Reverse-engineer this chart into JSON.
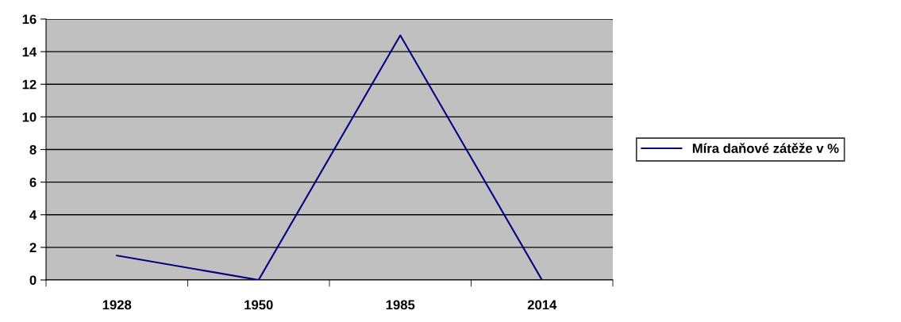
{
  "chart_data": {
    "type": "line",
    "categories": [
      "1928",
      "1950",
      "1985",
      "2014"
    ],
    "series": [
      {
        "name": "Míra daňové zátěže v %",
        "color": "#000080",
        "values": [
          1.5,
          0,
          15,
          0
        ]
      }
    ],
    "ylim": [
      0,
      16
    ],
    "yticks": [
      0,
      2,
      4,
      6,
      8,
      10,
      12,
      14,
      16
    ],
    "grid": "y",
    "legend": "right",
    "marker": "none",
    "line_style": "solid"
  }
}
